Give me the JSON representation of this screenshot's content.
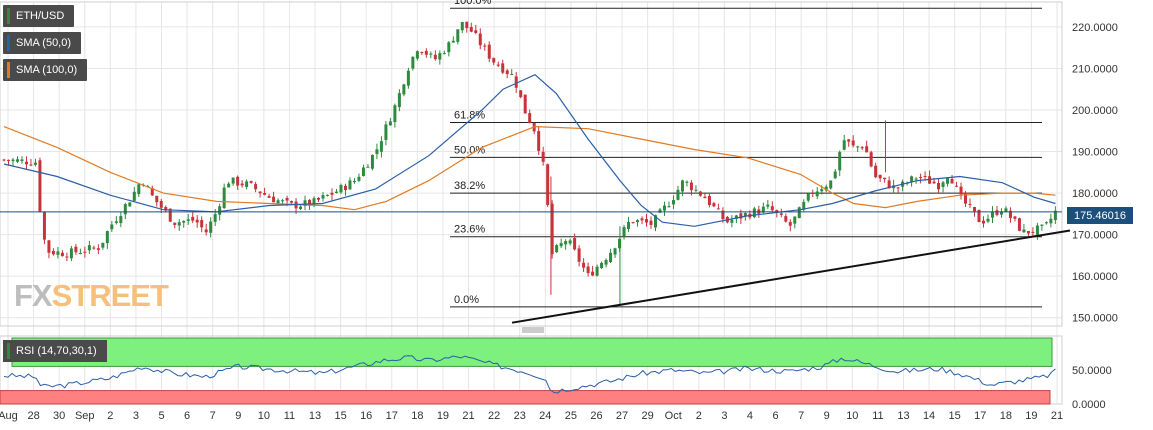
{
  "legends": {
    "symbol": {
      "label": "ETH/USD",
      "color": "#2d8a3e"
    },
    "sma50": {
      "label": "SMA (50,0)",
      "color": "#2a5fa8"
    },
    "sma100": {
      "label": "SMA (100,0)",
      "color": "#e07b24"
    },
    "rsi": {
      "label": "RSI (14,70,30,1)",
      "color": "#2d8a3e"
    }
  },
  "watermark": {
    "part1": "FX",
    "part2": "STREET"
  },
  "price_tag": "175.46016",
  "chart_data": {
    "type": "candlestick",
    "ylim": [
      148,
      226
    ],
    "y_ticks": [
      "220.0000",
      "210.0000",
      "200.0000",
      "190.0000",
      "180.0000",
      "170.0000",
      "160.0000",
      "150.0000"
    ],
    "y_tick_values": [
      220,
      210,
      200,
      190,
      180,
      170,
      160,
      150
    ],
    "x_ticks": [
      "Aug",
      "28",
      "30",
      "Sep",
      "2",
      "3",
      "5",
      "6",
      "7",
      "9",
      "10",
      "11",
      "13",
      "15",
      "16",
      "17",
      "18",
      "19",
      "21",
      "22",
      "23",
      "24",
      "25",
      "26",
      "27",
      "29",
      "Oct",
      "2",
      "3",
      "4",
      "6",
      "7",
      "9",
      "10",
      "11",
      "13",
      "14",
      "15",
      "17",
      "18",
      "19",
      "21"
    ],
    "last_price": 175.46,
    "fibonacci": [
      {
        "label": "100.0%",
        "value": 224.5
      },
      {
        "label": "61.8%",
        "value": 197.0
      },
      {
        "label": "50.0%",
        "value": 188.6
      },
      {
        "label": "38.2%",
        "value": 180.0
      },
      {
        "label": "23.6%",
        "value": 169.5
      },
      {
        "label": "0.0%",
        "value": 152.6
      }
    ],
    "trendline": {
      "from": {
        "x": 0.42,
        "y": 148.8
      },
      "to": {
        "x": 1.0,
        "y": 171.0
      }
    },
    "close_path": [
      [
        0.0,
        188.0
      ],
      [
        0.03,
        187.5
      ],
      [
        0.035,
        173.0
      ],
      [
        0.04,
        166.0
      ],
      [
        0.06,
        165.5
      ],
      [
        0.09,
        167.0
      ],
      [
        0.1,
        172.0
      ],
      [
        0.12,
        179.0
      ],
      [
        0.13,
        183.5
      ],
      [
        0.14,
        179.0
      ],
      [
        0.16,
        173.0
      ],
      [
        0.18,
        173.5
      ],
      [
        0.19,
        170.5
      ],
      [
        0.2,
        175.5
      ],
      [
        0.21,
        183.0
      ],
      [
        0.23,
        182.0
      ],
      [
        0.25,
        179.0
      ],
      [
        0.27,
        177.0
      ],
      [
        0.29,
        177.5
      ],
      [
        0.31,
        180.0
      ],
      [
        0.33,
        183.0
      ],
      [
        0.35,
        190.0
      ],
      [
        0.37,
        202.0
      ],
      [
        0.38,
        210.0
      ],
      [
        0.39,
        215.5
      ],
      [
        0.405,
        212.0
      ],
      [
        0.42,
        216.0
      ],
      [
        0.43,
        221.0
      ],
      [
        0.44,
        219.0
      ],
      [
        0.46,
        212.0
      ],
      [
        0.48,
        208.0
      ],
      [
        0.49,
        200.0
      ],
      [
        0.5,
        195.0
      ],
      [
        0.51,
        184.0
      ],
      [
        0.515,
        165.0
      ],
      [
        0.53,
        169.0
      ],
      [
        0.55,
        160.0
      ],
      [
        0.57,
        165.5
      ],
      [
        0.59,
        173.5
      ],
      [
        0.61,
        172.5
      ],
      [
        0.63,
        179.0
      ],
      [
        0.64,
        183.0
      ],
      [
        0.66,
        179.0
      ],
      [
        0.68,
        173.0
      ],
      [
        0.7,
        175.0
      ],
      [
        0.72,
        176.5
      ],
      [
        0.74,
        172.0
      ],
      [
        0.76,
        180.0
      ],
      [
        0.78,
        183.0
      ],
      [
        0.79,
        193.0
      ],
      [
        0.8,
        191.0
      ],
      [
        0.81,
        191.5
      ],
      [
        0.82,
        184.0
      ],
      [
        0.84,
        181.0
      ],
      [
        0.86,
        184.0
      ],
      [
        0.88,
        182.0
      ],
      [
        0.89,
        185.0
      ],
      [
        0.9,
        179.0
      ],
      [
        0.92,
        173.0
      ],
      [
        0.94,
        176.5
      ],
      [
        0.96,
        170.5
      ],
      [
        0.98,
        171.5
      ],
      [
        0.99,
        175.46
      ]
    ],
    "sma50_path": [
      [
        0.0,
        187.0
      ],
      [
        0.05,
        184.0
      ],
      [
        0.1,
        179.5
      ],
      [
        0.15,
        176.0
      ],
      [
        0.2,
        175.5
      ],
      [
        0.25,
        177.0
      ],
      [
        0.3,
        177.5
      ],
      [
        0.35,
        181.0
      ],
      [
        0.4,
        189.0
      ],
      [
        0.45,
        200.0
      ],
      [
        0.47,
        205.0
      ],
      [
        0.5,
        208.5
      ],
      [
        0.52,
        204.0
      ],
      [
        0.55,
        193.0
      ],
      [
        0.58,
        183.0
      ],
      [
        0.6,
        177.0
      ],
      [
        0.62,
        173.0
      ],
      [
        0.65,
        172.0
      ],
      [
        0.7,
        174.5
      ],
      [
        0.75,
        176.0
      ],
      [
        0.78,
        177.5
      ],
      [
        0.82,
        180.5
      ],
      [
        0.86,
        183.0
      ],
      [
        0.9,
        184.0
      ],
      [
        0.94,
        182.5
      ],
      [
        0.97,
        179.0
      ],
      [
        0.99,
        177.5
      ]
    ],
    "sma100_path": [
      [
        0.0,
        196.0
      ],
      [
        0.05,
        191.0
      ],
      [
        0.1,
        185.0
      ],
      [
        0.15,
        180.0
      ],
      [
        0.2,
        178.0
      ],
      [
        0.25,
        177.5
      ],
      [
        0.3,
        177.0
      ],
      [
        0.33,
        176.0
      ],
      [
        0.36,
        178.0
      ],
      [
        0.4,
        183.0
      ],
      [
        0.45,
        191.0
      ],
      [
        0.5,
        196.0
      ],
      [
        0.55,
        195.5
      ],
      [
        0.6,
        193.0
      ],
      [
        0.65,
        190.5
      ],
      [
        0.7,
        188.5
      ],
      [
        0.75,
        184.5
      ],
      [
        0.78,
        180.0
      ],
      [
        0.8,
        177.5
      ],
      [
        0.83,
        176.5
      ],
      [
        0.86,
        178.0
      ],
      [
        0.9,
        179.5
      ],
      [
        0.94,
        180.0
      ],
      [
        0.97,
        180.0
      ],
      [
        0.99,
        179.5
      ]
    ],
    "rsi": {
      "ylim": [
        0,
        100
      ],
      "y_ticks": [
        "50.0000",
        "0.0000"
      ],
      "y_tick_values": [
        50,
        0
      ],
      "overbought": 70,
      "oversold": 30,
      "path": [
        [
          0.0,
          42
        ],
        [
          0.03,
          40
        ],
        [
          0.035,
          25
        ],
        [
          0.06,
          28
        ],
        [
          0.1,
          38
        ],
        [
          0.13,
          55
        ],
        [
          0.16,
          45
        ],
        [
          0.19,
          40
        ],
        [
          0.22,
          55
        ],
        [
          0.26,
          50
        ],
        [
          0.3,
          45
        ],
        [
          0.33,
          55
        ],
        [
          0.36,
          65
        ],
        [
          0.38,
          68
        ],
        [
          0.4,
          64
        ],
        [
          0.43,
          70
        ],
        [
          0.46,
          58
        ],
        [
          0.49,
          48
        ],
        [
          0.51,
          38
        ],
        [
          0.515,
          18
        ],
        [
          0.54,
          25
        ],
        [
          0.57,
          33
        ],
        [
          0.6,
          45
        ],
        [
          0.63,
          50
        ],
        [
          0.66,
          45
        ],
        [
          0.7,
          52
        ],
        [
          0.74,
          48
        ],
        [
          0.77,
          55
        ],
        [
          0.79,
          68
        ],
        [
          0.81,
          60
        ],
        [
          0.84,
          48
        ],
        [
          0.88,
          52
        ],
        [
          0.9,
          45
        ],
        [
          0.93,
          28
        ],
        [
          0.96,
          35
        ],
        [
          0.98,
          40
        ],
        [
          0.99,
          48
        ]
      ]
    }
  }
}
